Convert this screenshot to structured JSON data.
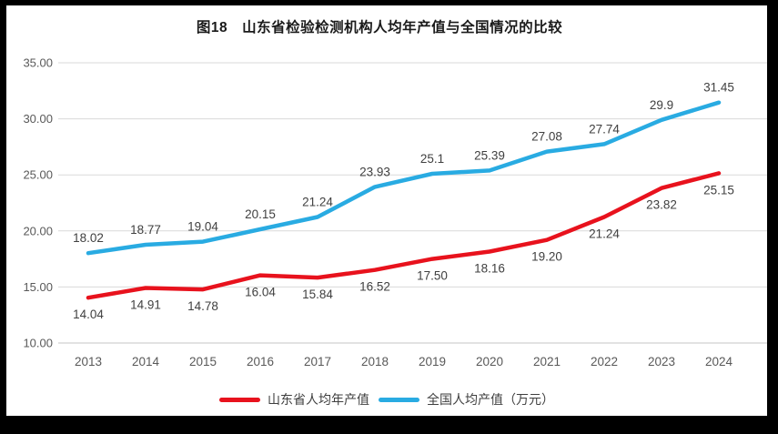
{
  "title": "图18　山东省检验检测机构人均年产值与全国情况的比较",
  "frame": {
    "border_color": "#000000",
    "chart_background": "#ffffff"
  },
  "chart_data": {
    "type": "line",
    "title": "图18　山东省检验检测机构人均年产值与全国情况的比较",
    "x": [
      "2013",
      "2014",
      "2015",
      "2016",
      "2017",
      "2018",
      "2019",
      "2020",
      "2021",
      "2022",
      "2023",
      "2024"
    ],
    "series": [
      {
        "name": "山东省人均年产值",
        "color": "#e8121d",
        "values": [
          14.04,
          14.91,
          14.78,
          16.04,
          15.84,
          16.52,
          17.5,
          18.16,
          19.2,
          21.24,
          23.82,
          25.15
        ],
        "point_labels": [
          "14.04",
          "14.91",
          "14.78",
          "16.04",
          "15.84",
          "16.52",
          "17.50",
          "18.16",
          "19.20",
          "21.24",
          "23.82",
          "25.15"
        ],
        "label_position": "below"
      },
      {
        "name": "全国人均产值（万元）",
        "color": "#29abe2",
        "values": [
          18.02,
          18.77,
          19.04,
          20.15,
          21.24,
          23.93,
          25.1,
          25.39,
          27.08,
          27.74,
          29.9,
          31.45
        ],
        "point_labels": [
          "18.02",
          "18.77",
          "19.04",
          "20.15",
          "21.24",
          "23.93",
          "25.1",
          "25.39",
          "27.08",
          "27.74",
          "29.9",
          "31.45"
        ],
        "label_position": "above"
      }
    ],
    "ylim": [
      10,
      35
    ],
    "y_tick_values": [
      10,
      15,
      20,
      25,
      30,
      35
    ],
    "y_tick_labels": [
      "10.00",
      "15.00",
      "20.00",
      "25.00",
      "30.00",
      "35.00"
    ],
    "grid": "horizontal",
    "gridline_color": "#d9d9d9",
    "axis_line_color": "#c6c6c6",
    "tick_label_color": "#595959",
    "data_label_color": "#404040",
    "legend_position": "bottom",
    "xlabel": "",
    "ylabel": ""
  }
}
